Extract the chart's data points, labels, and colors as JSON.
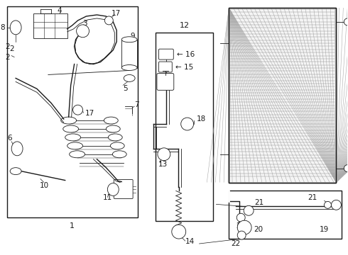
{
  "background_color": "#ffffff",
  "line_color": "#1a1a1a",
  "fig_width": 4.9,
  "fig_height": 3.6,
  "dpi": 100,
  "condenser_hatch_color": "#888888",
  "condenser_bg": "#f0f0f0"
}
